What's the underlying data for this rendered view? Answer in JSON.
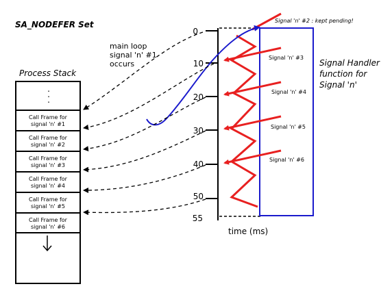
{
  "title": "SA_NODEFER Set",
  "process_stack": {
    "title": "Process Stack",
    "dots": ".\n.\n.",
    "frames": [
      "Call Frame for\nsignal 'n' #1",
      "Call Frame for\nsignal 'n' #2",
      "Call Frame for\nsignal 'n' #3",
      "Call Frame for\nsignal 'n' #4",
      "Call Frame for\nsignal 'n' #5",
      "Call Frame for\nsignal 'n' #6"
    ]
  },
  "main_loop_label": "main loop\nsignal 'n' #1\noccurs",
  "timeline": {
    "ticks": [
      "0",
      "10",
      "20",
      "30",
      "40",
      "50",
      "55"
    ],
    "axis_label": "time (ms)"
  },
  "signals": {
    "pending": "Signal 'n' #2 : kept pending!",
    "labels": [
      "Signal 'n' #3",
      "Signal 'n' #4",
      "Signal 'n' #5",
      "Signal 'n' #6"
    ]
  },
  "handler_label": "Signal Handler\nfunction for\nSignal 'n'",
  "colors": {
    "signal_arrow": "#e82020",
    "handler": "#1a1acc",
    "dashed": "#000000"
  }
}
